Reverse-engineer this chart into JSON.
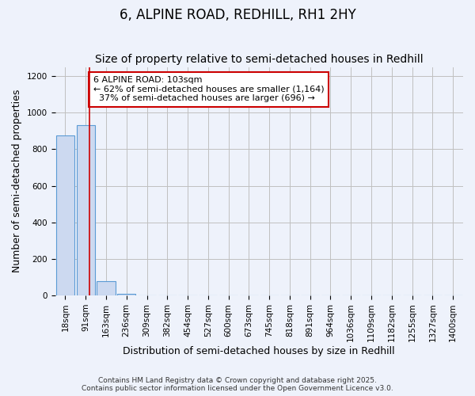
{
  "title": "6, ALPINE ROAD, REDHILL, RH1 2HY",
  "subtitle": "Size of property relative to semi-detached houses in Redhill",
  "xlabel": "Distribution of semi-detached houses by size in Redhill",
  "ylabel": "Number of semi-detached properties",
  "footer_line1": "Contains HM Land Registry data © Crown copyright and database right 2025.",
  "footer_line2": "Contains public sector information licensed under the Open Government Licence v3.0.",
  "bins": [
    "18sqm",
    "91sqm",
    "163sqm",
    "236sqm",
    "309sqm",
    "382sqm",
    "454sqm",
    "527sqm",
    "600sqm",
    "673sqm",
    "745sqm",
    "818sqm",
    "891sqm",
    "964sqm",
    "1036sqm",
    "1109sqm",
    "1182sqm",
    "1255sqm",
    "1327sqm",
    "1400sqm"
  ],
  "values": [
    875,
    930,
    80,
    10,
    2,
    1,
    1,
    0,
    0,
    0,
    0,
    0,
    0,
    0,
    0,
    0,
    0,
    0,
    0,
    0
  ],
  "bar_color": "#ccd9f0",
  "bar_edge_color": "#5b9bd5",
  "grid_color": "#c0c0c0",
  "bg_color": "#eef2fb",
  "fig_color": "#eef2fb",
  "red_line_x": 1.17,
  "annotation_text": "6 ALPINE ROAD: 103sqm\n← 62% of semi-detached houses are smaller (1,164)\n  37% of semi-detached houses are larger (696) →",
  "annotation_box_color": "#ffffff",
  "annotation_box_edge_color": "#cc0000",
  "annotation_text_color": "#000000",
  "red_line_color": "#cc0000",
  "ylim": [
    0,
    1250
  ],
  "yticks": [
    0,
    200,
    400,
    600,
    800,
    1000,
    1200
  ],
  "title_fontsize": 12,
  "subtitle_fontsize": 10,
  "axis_label_fontsize": 9,
  "tick_fontsize": 7.5,
  "annotation_fontsize": 8
}
